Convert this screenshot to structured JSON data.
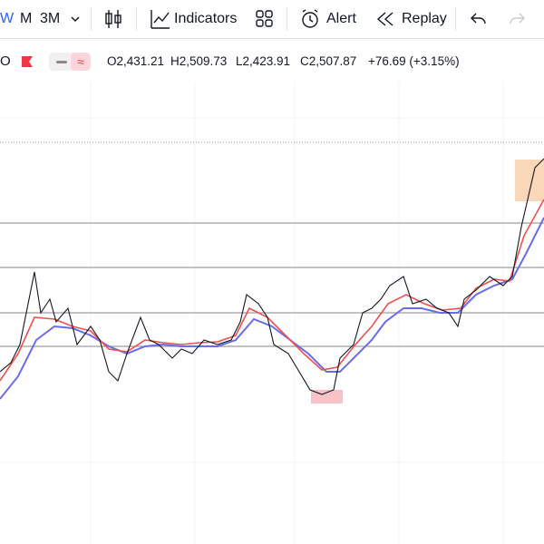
{
  "toolbar": {
    "intervals": [
      "W",
      "M",
      "3M"
    ],
    "indicators": "Indicators",
    "alert": "Alert",
    "replay": "Replay"
  },
  "legend": {
    "symbol_tail": "O",
    "open": "O2,431.21",
    "high": "H2,509.73",
    "low": "L2,423.91",
    "close": "C2,507.87",
    "change": "+76.69 (+3.15%)"
  }
}
